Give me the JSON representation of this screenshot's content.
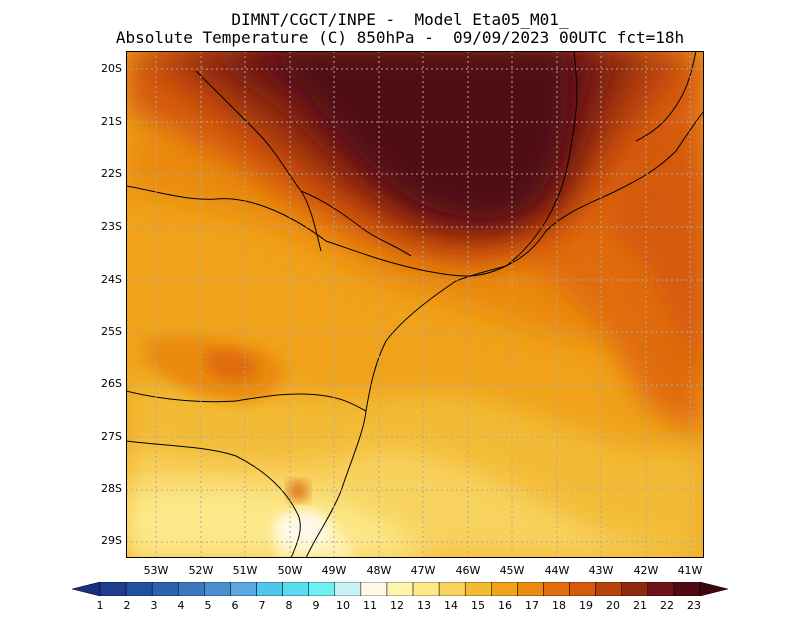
{
  "header": {
    "line1": "DIMNT/CGCT/INPE -  Model Eta05_M01_",
    "line2": "Absolute Temperature (C) 850hPa -  09/09/2023 00UTC fct=18h"
  },
  "map": {
    "lat_labels": [
      "20S",
      "21S",
      "22S",
      "23S",
      "24S",
      "25S",
      "26S",
      "27S",
      "28S",
      "29S"
    ],
    "lon_labels": [
      "53W",
      "52W",
      "51W",
      "50W",
      "49W",
      "48W",
      "47W",
      "46W",
      "45W",
      "44W",
      "43W",
      "42W",
      "41W"
    ],
    "lat_range": [
      -29.4,
      -19.8
    ],
    "lon_range": [
      -53.6,
      -40.6
    ],
    "grid": "dotted"
  },
  "colorbar": {
    "labels": [
      "1",
      "2",
      "3",
      "4",
      "5",
      "6",
      "7",
      "8",
      "9",
      "10",
      "11",
      "12",
      "13",
      "14",
      "15",
      "16",
      "17",
      "18",
      "19",
      "20",
      "21",
      "22",
      "23"
    ],
    "colors": [
      "#1e3d8f",
      "#2050a0",
      "#2b62b0",
      "#3a78c0",
      "#4a8fd0",
      "#5aa8e0",
      "#4fc6ec",
      "#58dcf0",
      "#6ef0f2",
      "#c8f4f8",
      "#fff8e6",
      "#fff3b0",
      "#fde98a",
      "#f8d25e",
      "#f3bb34",
      "#f0a21a",
      "#ea8a10",
      "#e06c0e",
      "#d55a0a",
      "#b8420b",
      "#8f2a10",
      "#6e1418",
      "#4f0a14"
    ],
    "arrow_low": "#1a2f80",
    "arrow_high": "#3a0610"
  }
}
